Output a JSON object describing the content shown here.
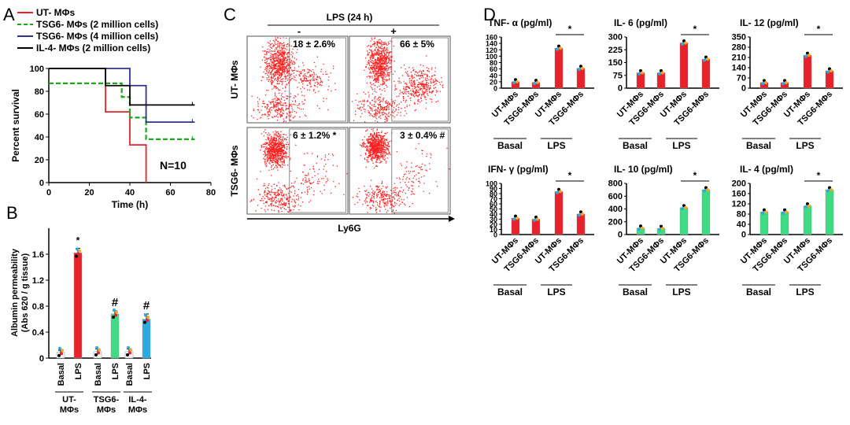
{
  "colors": {
    "red": "#e8212b",
    "green": "#3ddc84",
    "blue": "#2e3192",
    "black": "#000000",
    "cyan": "#29abe2",
    "grey": "#f2f2f2",
    "dot": "#ff2020"
  },
  "panels": {
    "A": "A",
    "B": "B",
    "C": "C",
    "D": "D"
  },
  "chart_data": [
    {
      "id": "A",
      "type": "line",
      "ylabel": "Percent survival",
      "xlabel": "Time (h)",
      "xlim": [
        0,
        80
      ],
      "ylim": [
        0,
        100
      ],
      "xticks": [
        "0",
        "20",
        "40",
        "60",
        "80"
      ],
      "yticks": [
        "0",
        "20",
        "40",
        "60",
        "80",
        "100"
      ],
      "annotation": "N=10",
      "legend_position": "top-left",
      "series": [
        {
          "name": "UT- MΦs",
          "color": "#e8212b",
          "dash": false,
          "points": [
            [
              0,
              100
            ],
            [
              28,
              100
            ],
            [
              28,
              62
            ],
            [
              40,
              62
            ],
            [
              40,
              33
            ],
            [
              48,
              33
            ],
            [
              48,
              0
            ]
          ]
        },
        {
          "name": "TSG6- MΦs (2 million cells)",
          "color": "#1aa81a",
          "dash": true,
          "points": [
            [
              0,
              87
            ],
            [
              36,
              87
            ],
            [
              36,
              75
            ],
            [
              40,
              75
            ],
            [
              40,
              57
            ],
            [
              48,
              57
            ],
            [
              48,
              38
            ],
            [
              72,
              38
            ]
          ]
        },
        {
          "name": "TSG6- MΦs (4 million cells)",
          "color": "#2e3192",
          "dash": false,
          "points": [
            [
              0,
              100
            ],
            [
              40,
              100
            ],
            [
              40,
              85
            ],
            [
              48,
              85
            ],
            [
              48,
              53
            ],
            [
              72,
              53
            ]
          ]
        },
        {
          "name": "IL-4- MΦs (2 million cells)",
          "color": "#000000",
          "dash": false,
          "points": [
            [
              0,
              100
            ],
            [
              28,
              100
            ],
            [
              28,
              85
            ],
            [
              40,
              85
            ],
            [
              40,
              68
            ],
            [
              72,
              68
            ]
          ]
        }
      ]
    },
    {
      "id": "B",
      "type": "bar",
      "ylabel": "Albumin permeability",
      "ylabel2": "(Abs 620 / g tissue)",
      "ylim": [
        0,
        2.0
      ],
      "yticks": [
        "0",
        "0.4",
        "0.8",
        "1.2",
        "1.6"
      ],
      "categories": [
        "Basal",
        "LPS",
        "Basal",
        "LPS",
        "Basal",
        "LPS"
      ],
      "values": [
        0.09,
        1.62,
        0.1,
        0.68,
        0.1,
        0.6
      ],
      "errors": [
        0.03,
        0.07,
        0.04,
        0.05,
        0.04,
        0.08
      ],
      "bar_colors": [
        "#f2f2f2",
        "#e8212b",
        "#f2f2f2",
        "#3ddc84",
        "#f2f2f2",
        "#29abe2"
      ],
      "marks": [
        "",
        "*",
        "",
        "#",
        "",
        "#"
      ],
      "groups": [
        {
          "line1": "UT-",
          "line2": "MΦs"
        },
        {
          "line1": "TSG6-",
          "line2": "MΦs"
        },
        {
          "line1": "IL-4-",
          "line2": "MΦs"
        }
      ]
    },
    {
      "id": "C",
      "type": "scatter",
      "title": "LPS (24 h)",
      "xlabel": "Ly6G",
      "col_labels": [
        "-",
        "+"
      ],
      "row_labels": [
        "UT- MΦs",
        "TSG6- MΦs"
      ],
      "percentages": [
        "18 ± 2.6%",
        "66 ± 5%",
        "6 ± 1.2% *",
        "3 ± 0.4% #"
      ]
    },
    {
      "id": "D",
      "type": "bar",
      "categories": [
        "UT-MΦs",
        "TSG6-MΦs",
        "UT-MΦs",
        "TSG6-MΦs"
      ],
      "group_labels": [
        "Basal",
        "LPS"
      ],
      "subplots": [
        {
          "title": "TNF- α (pg/ml)",
          "ylim": [
            0,
            160
          ],
          "yticks": [
            "0",
            "20",
            "40",
            "60",
            "80",
            "100",
            "120",
            "140",
            "160"
          ],
          "values": [
            20,
            18,
            125,
            62
          ],
          "color": "#e8212b",
          "sig": "*"
        },
        {
          "title": "IL- 6 (pg/ml)",
          "ylim": [
            0,
            300
          ],
          "yticks": [
            "0",
            "75",
            "150",
            "225",
            "300"
          ],
          "values": [
            90,
            90,
            265,
            170
          ],
          "color": "#e8212b",
          "sig": "*"
        },
        {
          "title": "IL- 12 (pg/ml)",
          "ylim": [
            0,
            350
          ],
          "yticks": [
            "0",
            "70",
            "140",
            "210",
            "280",
            "350"
          ],
          "values": [
            38,
            38,
            225,
            118
          ],
          "color": "#e8212b",
          "sig": "*"
        },
        {
          "title": "IFN- γ (pg/ml)",
          "ylim": [
            0,
            100
          ],
          "yticks": [
            "0",
            "10",
            "20",
            "30",
            "40",
            "50",
            "60",
            "70",
            "80",
            "90",
            "100"
          ],
          "values": [
            32,
            30,
            84,
            40
          ],
          "color": "#e8212b",
          "sig": "*"
        },
        {
          "title": "IL- 10 (pg/ml)",
          "ylim": [
            0,
            800
          ],
          "yticks": [
            "0",
            "200",
            "400",
            "600",
            "800"
          ],
          "values": [
            100,
            95,
            420,
            700
          ],
          "color": "#3ddc84",
          "sig": "*"
        },
        {
          "title": "IL- 4 (pg/ml)",
          "ylim": [
            0,
            200
          ],
          "yticks": [
            "0",
            "40",
            "80",
            "120",
            "160",
            "200"
          ],
          "values": [
            88,
            88,
            112,
            175
          ],
          "color": "#3ddc84",
          "sig": "*"
        }
      ]
    }
  ]
}
